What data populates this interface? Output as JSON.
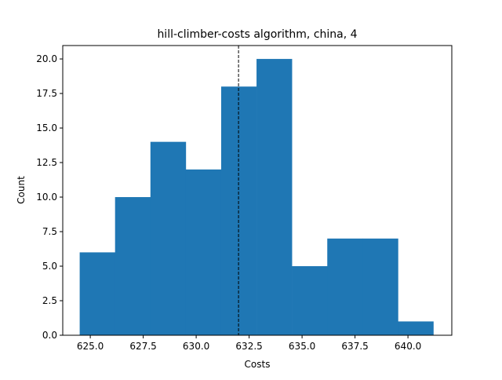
{
  "chart_data": {
    "type": "histogram",
    "title": "hill-climber-costs algorithm, china, 4",
    "xlabel": "Costs",
    "ylabel": "Count",
    "bins": [
      624.5,
      626.17,
      627.84,
      629.51,
      631.18,
      632.85,
      634.52,
      636.19,
      637.86,
      639.53,
      641.2
    ],
    "values": [
      6,
      10,
      14,
      12,
      18,
      20,
      5,
      7,
      7,
      1
    ],
    "color": "#1f77b4",
    "vline": 632.0,
    "xlim": [
      623.7,
      642.07
    ],
    "xticks": [
      {
        "value": 625,
        "label": "625.0"
      },
      {
        "value": 627.5,
        "label": "627.5"
      },
      {
        "value": 630,
        "label": "630.0"
      },
      {
        "value": 632.5,
        "label": "632.5"
      },
      {
        "value": 635,
        "label": "635.0"
      },
      {
        "value": 637.5,
        "label": "637.5"
      },
      {
        "value": 640,
        "label": "640.0"
      }
    ],
    "ylim": [
      0,
      20.97
    ],
    "yticks": [
      {
        "value": 0,
        "label": "0.0"
      },
      {
        "value": 2.5,
        "label": "2.5"
      },
      {
        "value": 5,
        "label": "5.0"
      },
      {
        "value": 7.5,
        "label": "7.5"
      },
      {
        "value": 10,
        "label": "10.0"
      },
      {
        "value": 12.5,
        "label": "12.5"
      },
      {
        "value": 15,
        "label": "15.0"
      },
      {
        "value": 17.5,
        "label": "17.5"
      },
      {
        "value": 20,
        "label": "20.0"
      }
    ]
  }
}
